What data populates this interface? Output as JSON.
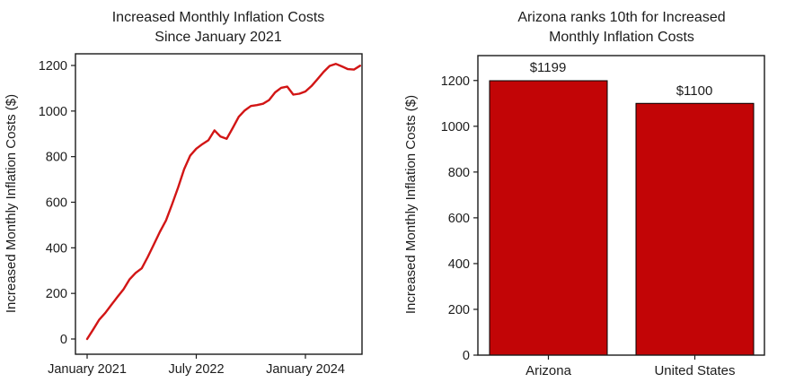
{
  "figure": {
    "background_color": "#ffffff",
    "text_color": "#1c1c1c"
  },
  "chart_data": [
    {
      "type": "line",
      "title_lines": [
        "Increased Monthly Inflation Costs",
        "Since January 2021"
      ],
      "ylabel": "Increased Monthly Inflation Costs ($)",
      "line_color": "#d21515",
      "x_months": [
        "2021-01",
        "2021-02",
        "2021-03",
        "2021-04",
        "2021-05",
        "2021-06",
        "2021-07",
        "2021-08",
        "2021-09",
        "2021-10",
        "2021-11",
        "2021-12",
        "2022-01",
        "2022-02",
        "2022-03",
        "2022-04",
        "2022-05",
        "2022-06",
        "2022-07",
        "2022-08",
        "2022-09",
        "2022-10",
        "2022-11",
        "2022-12",
        "2023-01",
        "2023-02",
        "2023-03",
        "2023-04",
        "2023-05",
        "2023-06",
        "2023-07",
        "2023-08",
        "2023-09",
        "2023-10",
        "2023-11",
        "2023-12",
        "2024-01",
        "2024-02",
        "2024-03",
        "2024-04",
        "2024-05",
        "2024-06",
        "2024-07",
        "2024-08",
        "2024-09",
        "2024-10"
      ],
      "values": [
        0,
        42,
        85,
        115,
        150,
        185,
        218,
        262,
        290,
        310,
        360,
        415,
        470,
        520,
        590,
        665,
        745,
        805,
        835,
        855,
        872,
        915,
        888,
        878,
        925,
        975,
        1003,
        1022,
        1026,
        1032,
        1048,
        1082,
        1102,
        1107,
        1072,
        1076,
        1086,
        1110,
        1140,
        1172,
        1198,
        1207,
        1196,
        1184,
        1182,
        1199
      ],
      "xticks": [
        {
          "label": "January 2021",
          "month_index": 0
        },
        {
          "label": "July 2022",
          "month_index": 18
        },
        {
          "label": "January 2024",
          "month_index": 36
        }
      ],
      "yticks": [
        0,
        200,
        400,
        600,
        800,
        1000,
        1200
      ],
      "ylim": [
        -67,
        1273
      ],
      "grid": false
    },
    {
      "type": "bar",
      "title_lines": [
        "Arizona ranks 10th for Increased",
        "Monthly Inflation Costs"
      ],
      "ylabel": "Increased Monthly Inflation Costs ($)",
      "bar_color": "#c20506",
      "bar_edge_color": "#000000",
      "categories": [
        "Arizona",
        "United States"
      ],
      "values": [
        1199,
        1100
      ],
      "bar_labels": [
        "$1199",
        "$1100"
      ],
      "yticks": [
        0,
        200,
        400,
        600,
        800,
        1000,
        1200
      ],
      "ylim": [
        0,
        1313
      ],
      "grid": false
    }
  ]
}
